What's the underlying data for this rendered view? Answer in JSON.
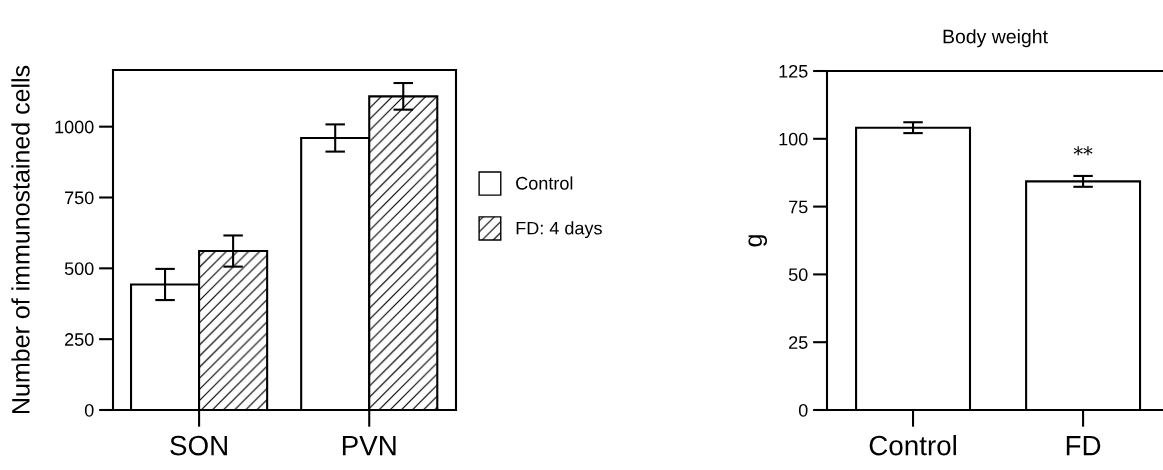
{
  "chart_data": [
    {
      "type": "bar",
      "ylabel": "Number of immunostained cells",
      "categories": [
        "SON",
        "PVN"
      ],
      "ylim": [
        0,
        1200
      ],
      "yticks": [
        0,
        250,
        500,
        750,
        1000
      ],
      "legend": "right",
      "grid": false,
      "series": [
        {
          "name": "Control",
          "color": "#ffffff",
          "values": [
            443,
            960
          ],
          "errors": [
            55,
            48
          ]
        },
        {
          "name": "FD: 4 days",
          "color": "#000000",
          "values": [
            561,
            1107
          ],
          "errors": [
            55,
            47
          ]
        }
      ]
    },
    {
      "type": "bar",
      "title": "Body weight",
      "ylabel": "g",
      "categories": [
        "Control",
        "FD"
      ],
      "ylim": [
        0,
        125
      ],
      "yticks": [
        0,
        25,
        50,
        75,
        100,
        125
      ],
      "legend": false,
      "grid": false,
      "series": [
        {
          "color": "#ffffff",
          "values": [
            104.1,
            84.3
          ],
          "errors": [
            2,
            2
          ]
        }
      ],
      "annotations": [
        "**"
      ]
    }
  ]
}
